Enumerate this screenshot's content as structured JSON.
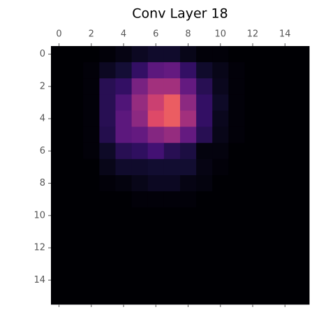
{
  "chart_data": {
    "type": "heatmap",
    "title": "Conv Layer 18",
    "colormap": "magma",
    "zlim": [
      0,
      1
    ],
    "xlim": [
      -0.5,
      15.5
    ],
    "ylim": [
      -0.5,
      15.5
    ],
    "xticks": [
      0,
      2,
      4,
      6,
      8,
      10,
      12,
      14
    ],
    "yticks": [
      0,
      2,
      4,
      6,
      8,
      10,
      12,
      14
    ],
    "values": [
      [
        0,
        0,
        0,
        0.01,
        0.03,
        0.06,
        0.08,
        0.08,
        0.04,
        0.01,
        0.01,
        0,
        0,
        0,
        0,
        0
      ],
      [
        0,
        0,
        0.01,
        0.06,
        0.1,
        0.18,
        0.28,
        0.3,
        0.18,
        0.08,
        0.04,
        0.01,
        0,
        0,
        0,
        0
      ],
      [
        0,
        0,
        0.01,
        0.15,
        0.18,
        0.35,
        0.45,
        0.45,
        0.3,
        0.15,
        0.05,
        0.01,
        0,
        0,
        0,
        0
      ],
      [
        0,
        0,
        0.01,
        0.15,
        0.25,
        0.42,
        0.55,
        0.65,
        0.4,
        0.18,
        0.07,
        0.01,
        0,
        0,
        0,
        0
      ],
      [
        0,
        0,
        0.01,
        0.15,
        0.28,
        0.4,
        0.6,
        0.65,
        0.45,
        0.18,
        0.05,
        0.01,
        0,
        0,
        0,
        0
      ],
      [
        0,
        0,
        0.01,
        0.14,
        0.28,
        0.3,
        0.38,
        0.42,
        0.3,
        0.15,
        0.04,
        0.01,
        0,
        0,
        0,
        0
      ],
      [
        0,
        0,
        0.01,
        0.07,
        0.15,
        0.17,
        0.22,
        0.15,
        0.12,
        0.02,
        0.02,
        0,
        0,
        0,
        0,
        0
      ],
      [
        0,
        0,
        0,
        0.04,
        0.08,
        0.08,
        0.09,
        0.09,
        0.09,
        0.03,
        0.01,
        0,
        0,
        0,
        0,
        0
      ],
      [
        0,
        0,
        0,
        0.01,
        0.02,
        0.04,
        0.06,
        0.06,
        0.03,
        0.02,
        0,
        0,
        0,
        0,
        0,
        0
      ],
      [
        0,
        0,
        0,
        0,
        0,
        0.01,
        0.01,
        0.01,
        0.01,
        0,
        0,
        0,
        0,
        0,
        0,
        0
      ],
      [
        0,
        0,
        0,
        0,
        0,
        0,
        0,
        0,
        0,
        0,
        0,
        0,
        0,
        0,
        0,
        0
      ],
      [
        0,
        0,
        0,
        0,
        0,
        0,
        0,
        0,
        0,
        0,
        0,
        0,
        0,
        0,
        0,
        0
      ],
      [
        0,
        0,
        0,
        0,
        0,
        0,
        0,
        0,
        0,
        0,
        0,
        0,
        0,
        0,
        0,
        0
      ],
      [
        0,
        0,
        0,
        0,
        0,
        0,
        0,
        0,
        0,
        0,
        0,
        0,
        0,
        0,
        0,
        0
      ],
      [
        0,
        0,
        0,
        0,
        0,
        0,
        0,
        0,
        0,
        0,
        0,
        0,
        0,
        0,
        0,
        0
      ],
      [
        0,
        0,
        0,
        0,
        0,
        0,
        0,
        0,
        0,
        0,
        0,
        0,
        0,
        0,
        0,
        0
      ]
    ]
  }
}
